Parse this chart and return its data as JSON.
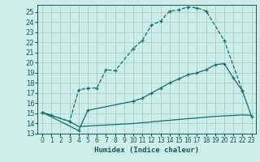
{
  "title": "",
  "xlabel": "Humidex (Indice chaleur)",
  "bg_color": "#cceee8",
  "grid_color": "#aad4ce",
  "line_color": "#1a6b6b",
  "xlim": [
    -0.5,
    23.5
  ],
  "ylim": [
    13,
    25.7
  ],
  "yticks": [
    13,
    14,
    15,
    16,
    17,
    18,
    19,
    20,
    21,
    22,
    23,
    24,
    25
  ],
  "xticks": [
    0,
    1,
    2,
    3,
    4,
    5,
    6,
    7,
    8,
    9,
    10,
    11,
    12,
    13,
    14,
    15,
    16,
    17,
    18,
    19,
    20,
    21,
    22,
    23
  ],
  "line1_x": [
    0,
    1,
    3,
    4,
    5,
    6,
    7,
    8,
    10,
    11,
    12,
    13,
    14,
    15,
    16,
    17,
    18,
    20,
    22
  ],
  "line1_y": [
    15.1,
    14.8,
    14.2,
    17.3,
    17.5,
    17.5,
    19.3,
    19.2,
    21.4,
    22.2,
    23.7,
    24.1,
    25.1,
    25.2,
    25.5,
    25.4,
    25.1,
    22.2,
    17.2
  ],
  "line2_x": [
    0,
    4,
    5,
    10,
    11,
    12,
    13,
    14,
    15,
    16,
    17,
    18,
    19,
    20,
    21,
    22,
    23
  ],
  "line2_y": [
    15.1,
    13.3,
    15.3,
    16.2,
    16.5,
    17.0,
    17.5,
    18.0,
    18.4,
    18.8,
    19.0,
    19.3,
    19.8,
    19.9,
    18.5,
    17.2,
    14.7
  ],
  "line3_x": [
    0,
    3,
    4,
    10,
    15,
    19,
    20,
    21,
    22,
    23
  ],
  "line3_y": [
    15.1,
    14.2,
    13.7,
    14.0,
    14.4,
    14.7,
    14.75,
    14.8,
    14.85,
    14.8
  ]
}
